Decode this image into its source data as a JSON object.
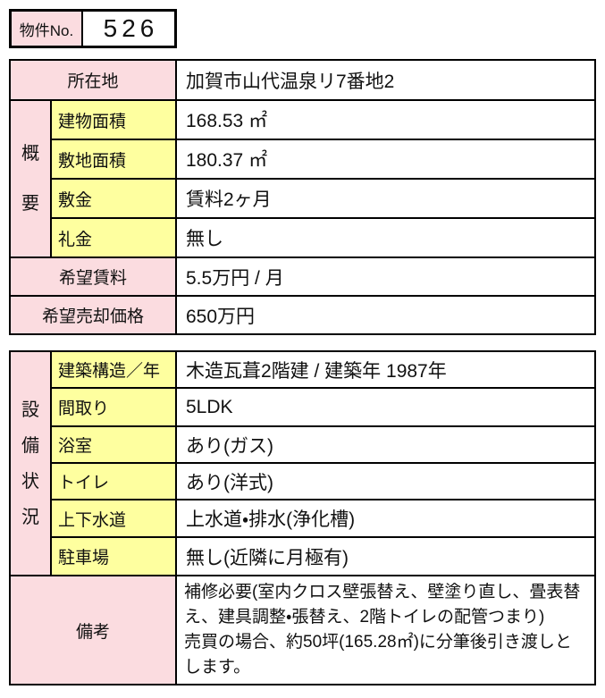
{
  "colors": {
    "pink": "#fbdce0",
    "yellow": "#feff9f",
    "border": "#000000",
    "text": "#111111"
  },
  "property_header": {
    "label": "物件No.",
    "number": "526"
  },
  "overview": {
    "group_label": "概要",
    "location": {
      "label": "所在地",
      "value": "加賀市山代温泉リ7番地2"
    },
    "rows": [
      {
        "label": "建物面積",
        "value": "168.53 ㎡"
      },
      {
        "label": "敷地面積",
        "value": "180.37 ㎡"
      },
      {
        "label": "敷金",
        "value": "賃料2ヶ月"
      },
      {
        "label": "礼金",
        "value": "無し"
      }
    ],
    "desired_rent": {
      "label": "希望賃料",
      "value": "5.5万円 / 月"
    },
    "desired_sale_price": {
      "label": "希望売却価格",
      "value": "650万円"
    }
  },
  "facilities": {
    "group_label": "設備状況",
    "rows": [
      {
        "label": "建築構造／年",
        "value": "木造瓦葺2階建 / 建築年 1987年"
      },
      {
        "label": "間取り",
        "value": "5LDK"
      },
      {
        "label": "浴室",
        "value": "あり(ガス)"
      },
      {
        "label": "トイレ",
        "value": "あり(洋式)"
      },
      {
        "label": "上下水道",
        "value": "上水道・排水(浄化槽)"
      },
      {
        "label": "駐車場",
        "value": "無し(近隣に月極有)"
      }
    ],
    "remarks": {
      "label": "備考",
      "value": "補修必要(室内クロス壁張替え、壁塗り直し、畳表替え、建具調整・張替え、2階トイレの配管つまり)\n売買の場合、約50坪(165.28㎡)に分筆後引き渡しとします。"
    }
  }
}
